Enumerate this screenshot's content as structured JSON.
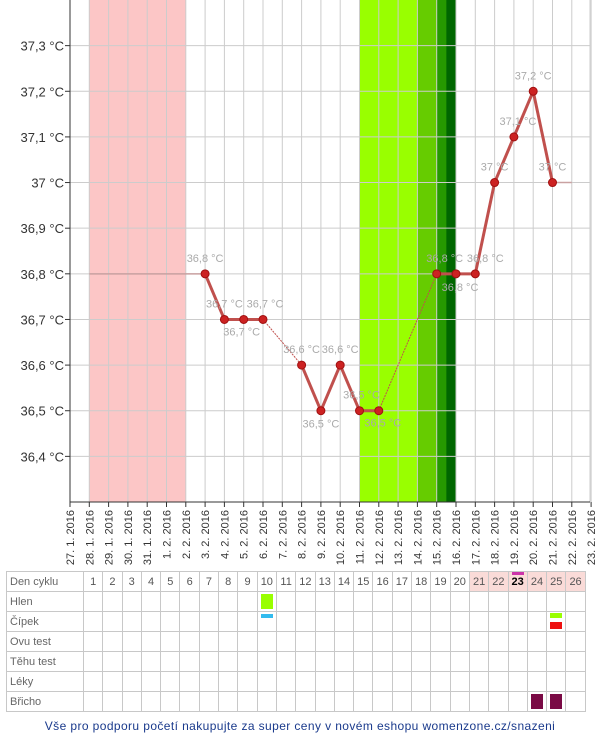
{
  "chart_data": {
    "type": "line",
    "y_axis": {
      "ticks": [
        36.4,
        36.5,
        36.6,
        36.7,
        36.8,
        36.9,
        37.0,
        37.1,
        37.2,
        37.3
      ],
      "tick_labels": [
        "36,4 °C",
        "36,5 °C",
        "36,6 °C",
        "36,7 °C",
        "36,8 °C",
        "36,9 °C",
        "37 °C",
        "37,1 °C",
        "37,2 °C",
        "37,3 °C"
      ],
      "ylim": [
        36.3,
        37.4
      ]
    },
    "x_axis": {
      "dates": [
        "27. 1. 2016",
        "28. 1. 2016",
        "29. 1. 2016",
        "30. 1. 2016",
        "31. 1. 2016",
        "1. 2. 2016",
        "2. 2. 2016",
        "3. 2. 2016",
        "4. 2. 2016",
        "5. 2. 2016",
        "6. 2. 2016",
        "7. 2. 2016",
        "8. 2. 2016",
        "9. 2. 2016",
        "10. 2. 2016",
        "11. 2. 2016",
        "12. 2. 2016",
        "13. 2. 2016",
        "14. 2. 2016",
        "15. 2. 2016",
        "16. 2. 2016",
        "17. 2. 2016",
        "18. 2. 2016",
        "19. 2. 2016",
        "20. 2. 2016",
        "21. 2. 2016",
        "22. 2. 2016",
        "23. 2. 2016"
      ]
    },
    "measured_points": [
      {
        "date": "3. 2. 2016",
        "value": 36.8,
        "label": "36,8 °C"
      },
      {
        "date": "4. 2. 2016",
        "value": 36.7,
        "label": "36,7 °C"
      },
      {
        "date": "5. 2. 2016",
        "value": 36.7,
        "label": "36,7 °C"
      },
      {
        "date": "6. 2. 2016",
        "value": 36.7,
        "label": "36,7 °C"
      },
      {
        "date": "8. 2. 2016",
        "value": 36.6,
        "label": "36,6 °C"
      },
      {
        "date": "9. 2. 2016",
        "value": 36.5,
        "label": "36,5 °C"
      },
      {
        "date": "10. 2. 2016",
        "value": 36.6,
        "label": "36,6 °C"
      },
      {
        "date": "11. 2. 2016",
        "value": 36.5,
        "label": "36,5 °C"
      },
      {
        "date": "12. 2. 2016",
        "value": 36.5,
        "label": "36,5 °C"
      },
      {
        "date": "15. 2. 2016",
        "value": 36.8,
        "label": "36,8 °C"
      },
      {
        "date": "16. 2. 2016",
        "value": 36.8,
        "label": "36,8 °C"
      },
      {
        "date": "17. 2. 2016",
        "value": 36.8,
        "label": "36,8 °C"
      },
      {
        "date": "18. 2. 2016",
        "value": 37.0,
        "label": "37 °C"
      },
      {
        "date": "19. 2. 2016",
        "value": 37.1,
        "label": "37,1 °C"
      },
      {
        "date": "20. 2. 2016",
        "value": 37.2,
        "label": "37,2 °C"
      },
      {
        "date": "21. 2. 2016",
        "value": 37.0,
        "label": "37 °C"
      }
    ],
    "leading_value": 36.8,
    "leading_from": "28. 1. 2016",
    "trailing_value": 37.0,
    "trailing_to": "22. 2. 2016",
    "label_offsets": [
      [
        0,
        -12
      ],
      [
        0,
        -12
      ],
      [
        -2,
        12
      ],
      [
        2,
        -12
      ],
      [
        0,
        -12
      ],
      [
        0,
        13
      ],
      [
        0,
        -12
      ],
      [
        2,
        -12
      ],
      [
        4,
        12
      ],
      [
        8,
        -12
      ],
      [
        4,
        13
      ],
      [
        10,
        -12
      ],
      [
        0,
        -12
      ],
      [
        4,
        -12
      ],
      [
        0,
        -12
      ],
      [
        0,
        -12
      ]
    ],
    "bands": [
      {
        "from": "28. 1. 2016",
        "to": "1. 2. 2016",
        "kind": "infertile",
        "color": "#fcc6c6"
      },
      {
        "from": "11. 2. 2016",
        "to": "13. 2. 2016",
        "kind": "fertile",
        "color": "#99ff00"
      },
      {
        "from": "14. 2. 2016",
        "to": "14. 2. 2016",
        "kind": "fertile-high",
        "color": "#66cc00"
      },
      {
        "from": "15. 2. 2016",
        "to": "15. 2. 2016",
        "kind": "fertile-peak",
        "color": "#269900"
      },
      {
        "from": "15. 2. 2016",
        "to": "15. 2. 2016",
        "kind": "ovulation",
        "color": "#006600"
      }
    ],
    "colors": {
      "line": "#c0504d",
      "marker": "#cc2222",
      "label": "#aaaaaa",
      "grid": "#cccccc",
      "thin_line": "#c9a1a1"
    }
  },
  "table": {
    "row_labels": [
      "Den cyklu",
      "Hlen",
      "Čípek",
      "Ovu test",
      "Těhu test",
      "Léky",
      "Břicho"
    ],
    "days": [
      "1",
      "2",
      "3",
      "4",
      "5",
      "6",
      "7",
      "8",
      "9",
      "10",
      "11",
      "12",
      "13",
      "14",
      "15",
      "16",
      "17",
      "18",
      "19",
      "20",
      "21",
      "22",
      "23",
      "24",
      "25",
      "26"
    ],
    "infertile_days": [
      "21",
      "22",
      "23",
      "24",
      "25",
      "26"
    ],
    "today_day": "23",
    "markers": [
      {
        "row": "Hlen",
        "day": "10",
        "kind": "block",
        "color": "#99ff00"
      },
      {
        "row": "Čípek",
        "day": "10",
        "kind": "thin",
        "color": "#33bbee"
      },
      {
        "row": "Čípek",
        "day": "25",
        "kind": "stack",
        "color": "#99ff00"
      },
      {
        "row": "Den cyklu",
        "day": "23",
        "kind": "top",
        "color": "#cc33aa"
      },
      {
        "row": "Břicho",
        "day": "24",
        "kind": "block",
        "color": "#7a0a45"
      },
      {
        "row": "Břicho",
        "day": "25",
        "kind": "block",
        "color": "#7a0a45"
      }
    ],
    "marker_colors": {
      "cervix_red": "#ee1111"
    }
  },
  "footer": {
    "text": "Vše pro podporu početí nakupujte za super ceny v novém eshopu womenzone.cz/snazeni"
  }
}
